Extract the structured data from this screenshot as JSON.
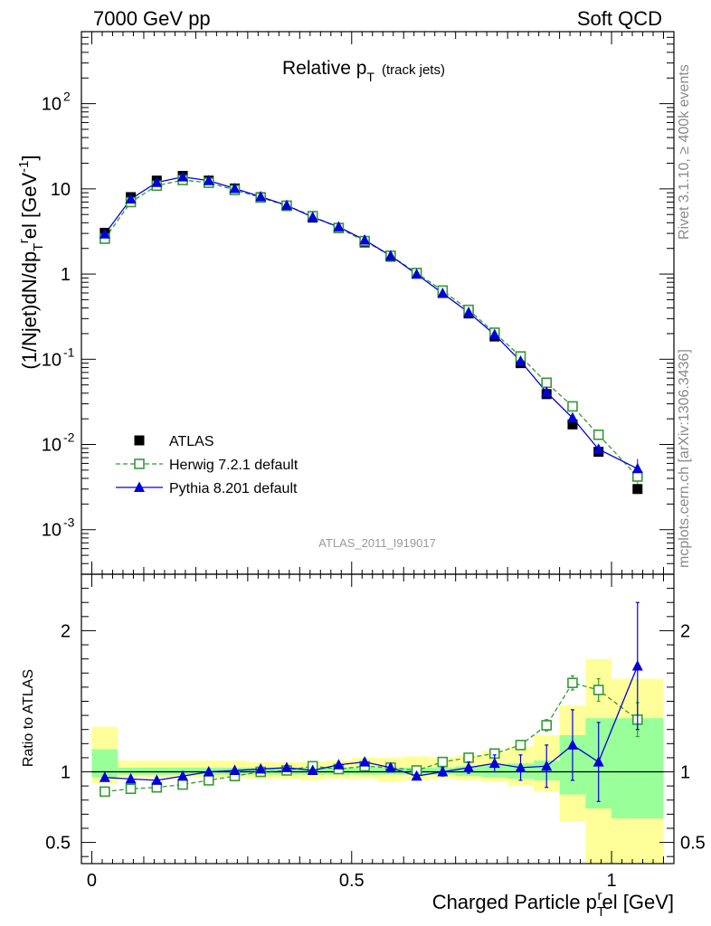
{
  "header": {
    "left": "7000 GeV pp",
    "right": "Soft QCD"
  },
  "side_notes": {
    "top": "Rivet 3.1.10, ≥ 400k events",
    "bottom": "mcplots.cern.ch [arXiv:1306.3436]"
  },
  "analysis_id": "ATLAS_2011_I919017",
  "chart_data": [
    {
      "type": "scatter",
      "panel": "main",
      "title": "Relative p_T (track jets)",
      "title_main": "Relative p",
      "title_sub": "T",
      "title_extra": "(track jets)",
      "ylabel": "(1/Njet)dN/dp_T^rel [GeV^-1]",
      "yscale": "log",
      "ylim": [
        0.0003,
        700
      ],
      "xlim": [
        -0.02,
        1.12
      ],
      "y_ticks": [
        {
          "v": 0.001,
          "base": "10",
          "exp": "-3"
        },
        {
          "v": 0.01,
          "base": "10",
          "exp": "-2"
        },
        {
          "v": 0.1,
          "base": "10",
          "exp": "-1"
        },
        {
          "v": 1,
          "base": "1",
          "exp": ""
        },
        {
          "v": 10,
          "base": "10",
          "exp": ""
        },
        {
          "v": 100,
          "base": "10",
          "exp": "2"
        }
      ],
      "x": [
        0.025,
        0.075,
        0.125,
        0.175,
        0.225,
        0.275,
        0.325,
        0.375,
        0.425,
        0.475,
        0.525,
        0.575,
        0.625,
        0.675,
        0.725,
        0.775,
        0.825,
        0.875,
        0.925,
        0.975,
        1.05
      ],
      "legend_position": "bottom-left",
      "series": [
        {
          "name": "ATLAS",
          "color": "#000000",
          "marker": "square-filled",
          "values": [
            3.05,
            8.0,
            12.5,
            14.2,
            12.5,
            10.1,
            8.0,
            6.3,
            4.6,
            3.45,
            2.35,
            1.6,
            1.02,
            0.6,
            0.345,
            0.185,
            0.09,
            0.039,
            0.0172,
            0.0082,
            0.003
          ]
        },
        {
          "name": "Herwig 7.2.1 default",
          "color": "#339933",
          "marker": "square-open",
          "values": [
            2.6,
            7.0,
            10.9,
            12.7,
            11.8,
            9.7,
            7.9,
            6.35,
            4.78,
            3.48,
            2.44,
            1.64,
            1.03,
            0.64,
            0.38,
            0.205,
            0.108,
            0.053,
            0.028,
            0.013,
            0.0042
          ]
        },
        {
          "name": "Pythia 8.201 default",
          "color": "#0000dd",
          "marker": "triangle-filled",
          "values": [
            2.95,
            7.6,
            11.9,
            13.8,
            12.5,
            10.1,
            8.1,
            6.4,
            4.65,
            3.58,
            2.51,
            1.64,
            0.995,
            0.595,
            0.355,
            0.195,
            0.095,
            0.041,
            0.0205,
            0.0088,
            0.0052
          ]
        }
      ]
    },
    {
      "type": "scatter",
      "panel": "ratio",
      "ylabel": "Ratio to ATLAS",
      "xlabel": "Charged Particle p_T^rel [GeV]",
      "xlabel_main": "Charged Particle p",
      "xlabel_sub": "T",
      "xlabel_sup": "r",
      "xlabel_end": "el [GeV]",
      "ylim": [
        0.35,
        2.4
      ],
      "xlim": [
        -0.02,
        1.12
      ],
      "y_ticks": [
        "0.5",
        "1",
        "2"
      ],
      "x_ticks": [
        "0",
        "0.5",
        "1"
      ],
      "bins": [
        [
          0,
          0.05
        ],
        [
          0.05,
          0.1
        ],
        [
          0.1,
          0.15
        ],
        [
          0.15,
          0.2
        ],
        [
          0.2,
          0.25
        ],
        [
          0.25,
          0.3
        ],
        [
          0.3,
          0.35
        ],
        [
          0.35,
          0.4
        ],
        [
          0.4,
          0.45
        ],
        [
          0.45,
          0.5
        ],
        [
          0.5,
          0.55
        ],
        [
          0.55,
          0.6
        ],
        [
          0.6,
          0.65
        ],
        [
          0.65,
          0.7
        ],
        [
          0.7,
          0.75
        ],
        [
          0.75,
          0.8
        ],
        [
          0.8,
          0.85
        ],
        [
          0.85,
          0.9
        ],
        [
          0.9,
          0.95
        ],
        [
          0.95,
          1.0
        ],
        [
          1.0,
          1.1
        ]
      ],
      "band_total_lo": [
        0.92,
        0.96,
        0.96,
        0.96,
        0.96,
        0.96,
        0.95,
        0.95,
        0.94,
        0.95,
        0.95,
        0.93,
        0.94,
        0.95,
        0.94,
        0.93,
        0.9,
        0.86,
        0.65,
        0.35,
        0.35
      ],
      "band_total_hi": [
        1.32,
        1.08,
        1.08,
        1.08,
        1.08,
        1.08,
        1.07,
        1.07,
        1.07,
        1.08,
        1.1,
        1.1,
        1.11,
        1.1,
        1.12,
        1.15,
        1.18,
        1.26,
        1.47,
        1.8,
        1.66
      ],
      "band_stat_lo": [
        0.96,
        0.98,
        0.98,
        0.98,
        0.98,
        0.98,
        0.98,
        0.98,
        0.98,
        0.98,
        0.98,
        0.98,
        0.98,
        0.98,
        0.97,
        0.96,
        0.95,
        0.94,
        0.84,
        0.74,
        0.67
      ],
      "band_stat_hi": [
        1.16,
        1.03,
        1.03,
        1.03,
        1.03,
        1.03,
        1.03,
        1.03,
        1.03,
        1.03,
        1.03,
        1.03,
        1.03,
        1.03,
        1.04,
        1.05,
        1.06,
        1.08,
        1.26,
        1.38,
        1.38
      ],
      "series": [
        {
          "name": "Herwig 7.2.1 default",
          "color": "#339933",
          "marker": "square-open",
          "values": [
            0.86,
            0.88,
            0.89,
            0.91,
            0.94,
            0.97,
            1.0,
            1.01,
            1.04,
            1.02,
            1.04,
            1.03,
            1.01,
            1.07,
            1.1,
            1.13,
            1.19,
            1.33,
            1.63,
            1.58,
            1.37
          ],
          "err": [
            0.01,
            0.01,
            0.01,
            0.01,
            0.01,
            0.01,
            0.01,
            0.01,
            0.01,
            0.01,
            0.01,
            0.01,
            0.01,
            0.01,
            0.02,
            0.03,
            0.03,
            0.04,
            0.05,
            0.08,
            0.12
          ]
        },
        {
          "name": "Pythia 8.201 default",
          "color": "#0000dd",
          "marker": "triangle-filled",
          "values": [
            0.96,
            0.95,
            0.94,
            0.97,
            1.0,
            1.01,
            1.02,
            1.03,
            1.01,
            1.05,
            1.07,
            1.03,
            0.97,
            1.0,
            1.03,
            1.06,
            1.03,
            1.04,
            1.19,
            1.07,
            1.75
          ],
          "err": [
            0.01,
            0.01,
            0.01,
            0.01,
            0.01,
            0.01,
            0.01,
            0.01,
            0.01,
            0.01,
            0.02,
            0.02,
            0.02,
            0.03,
            0.04,
            0.06,
            0.09,
            0.15,
            0.25,
            0.28,
            0.45
          ]
        }
      ]
    }
  ]
}
